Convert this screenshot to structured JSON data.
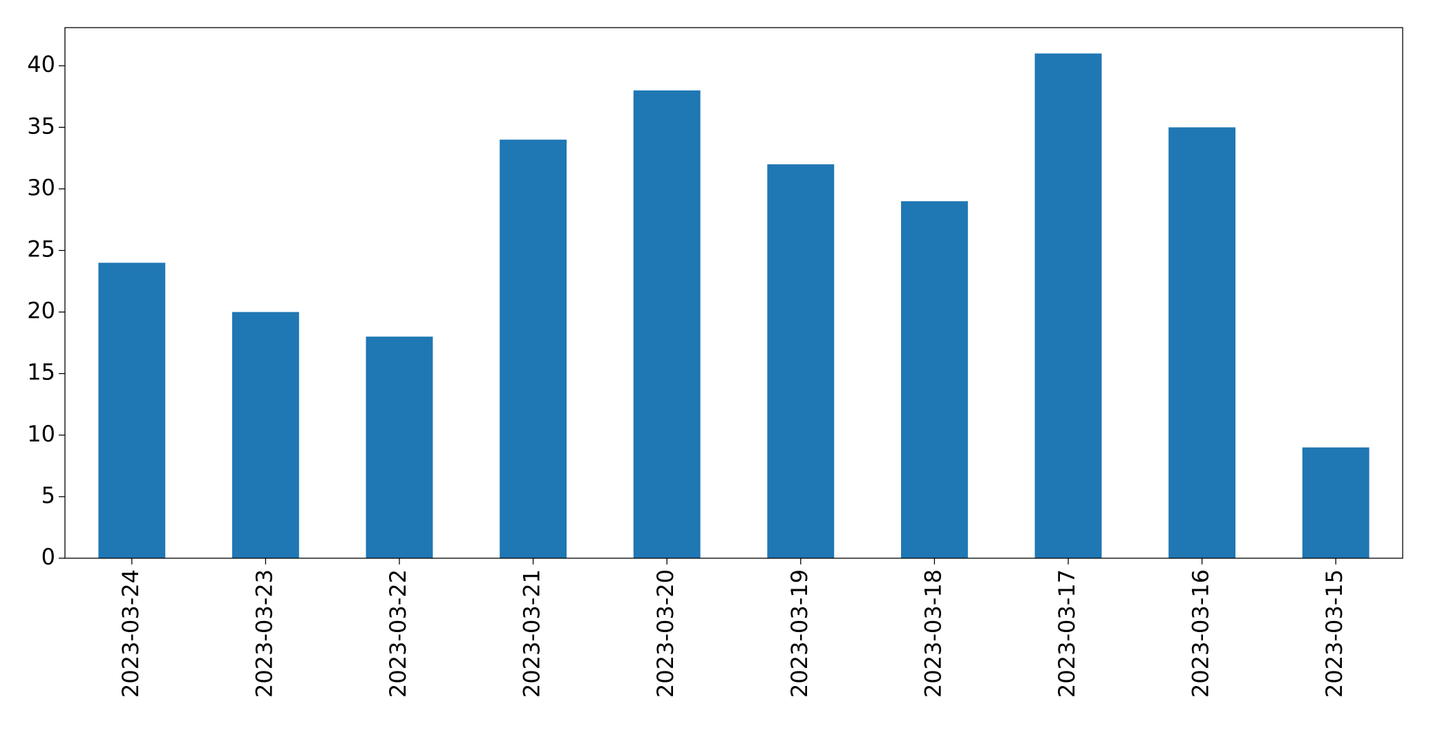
{
  "chart_data": {
    "type": "bar",
    "categories": [
      "2023-03-24",
      "2023-03-23",
      "2023-03-22",
      "2023-03-21",
      "2023-03-20",
      "2023-03-19",
      "2023-03-18",
      "2023-03-17",
      "2023-03-16",
      "2023-03-15"
    ],
    "values": [
      24,
      20,
      18,
      34,
      38,
      32,
      29,
      41,
      35,
      9
    ],
    "color": "#1f77b4",
    "ylim": [
      0,
      43.1
    ],
    "yticks": [
      0,
      5,
      10,
      15,
      20,
      25,
      30,
      35,
      40
    ],
    "grid": false
  }
}
